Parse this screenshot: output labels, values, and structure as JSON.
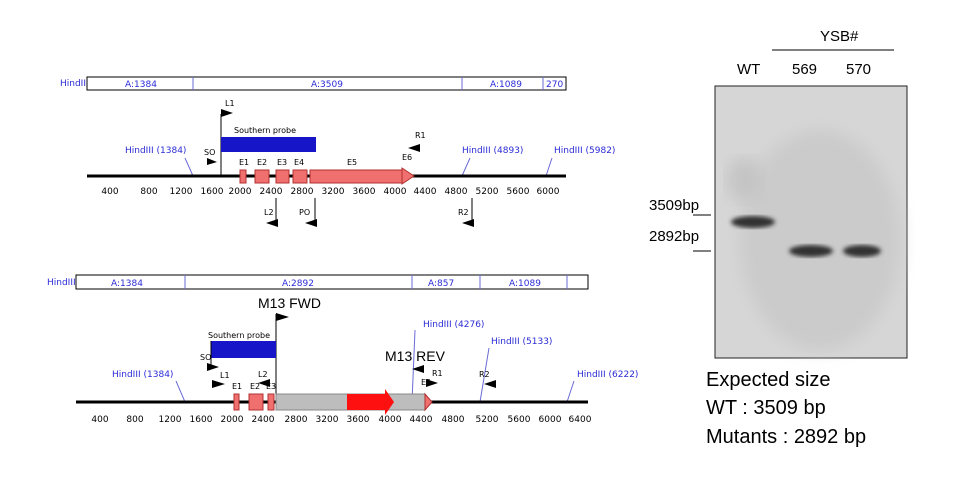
{
  "map1": {
    "enzyme_label": "HindIII",
    "fragments": [
      "A:1384",
      "A:3509",
      "A:1089",
      "270"
    ],
    "scale_ticks": [
      "400",
      "800",
      "1200",
      "1600",
      "2000",
      "2400",
      "2800",
      "3200",
      "3600",
      "4000",
      "4400",
      "4800",
      "5200",
      "5600",
      "6000"
    ],
    "sites": [
      "HindIII (1384)",
      "HindIII (4893)",
      "HindIII (5982)"
    ],
    "probe": "Southern probe",
    "exons": [
      "E1",
      "E2",
      "E3",
      "E4",
      "E5",
      "E6"
    ],
    "primers": [
      "L1",
      "SO",
      "R1",
      "L2",
      "PO",
      "R2"
    ]
  },
  "map2": {
    "enzyme_label": "HindIII",
    "fragments": [
      "A:1384",
      "A:2892",
      "A:857",
      "A:1089"
    ],
    "scale_ticks": [
      "400",
      "800",
      "1200",
      "1600",
      "2000",
      "2400",
      "2800",
      "3200",
      "3600",
      "4000",
      "4400",
      "4800",
      "5200",
      "5600",
      "6000",
      "6400"
    ],
    "sites": [
      "HindIII (1384)",
      "HindIII (4276)",
      "HindIII (5133)",
      "HindIII (6222)"
    ],
    "probe": "Southern probe",
    "exons": [
      "E1",
      "E2",
      "E3"
    ],
    "primers": [
      "SO",
      "L1",
      "L2",
      "R1",
      "R2",
      "E5"
    ],
    "m13_fwd": "M13 FWD",
    "m13_rev": "M13 REV"
  },
  "gel": {
    "group_label": "YSB#",
    "lanes": [
      "WT",
      "569",
      "570"
    ],
    "markers": [
      "3509bp",
      "2892bp"
    ]
  },
  "notes": {
    "heading": "Expected size",
    "wt": "WT : 3509 bp",
    "mutants": "Mutants : 2892 bp"
  }
}
